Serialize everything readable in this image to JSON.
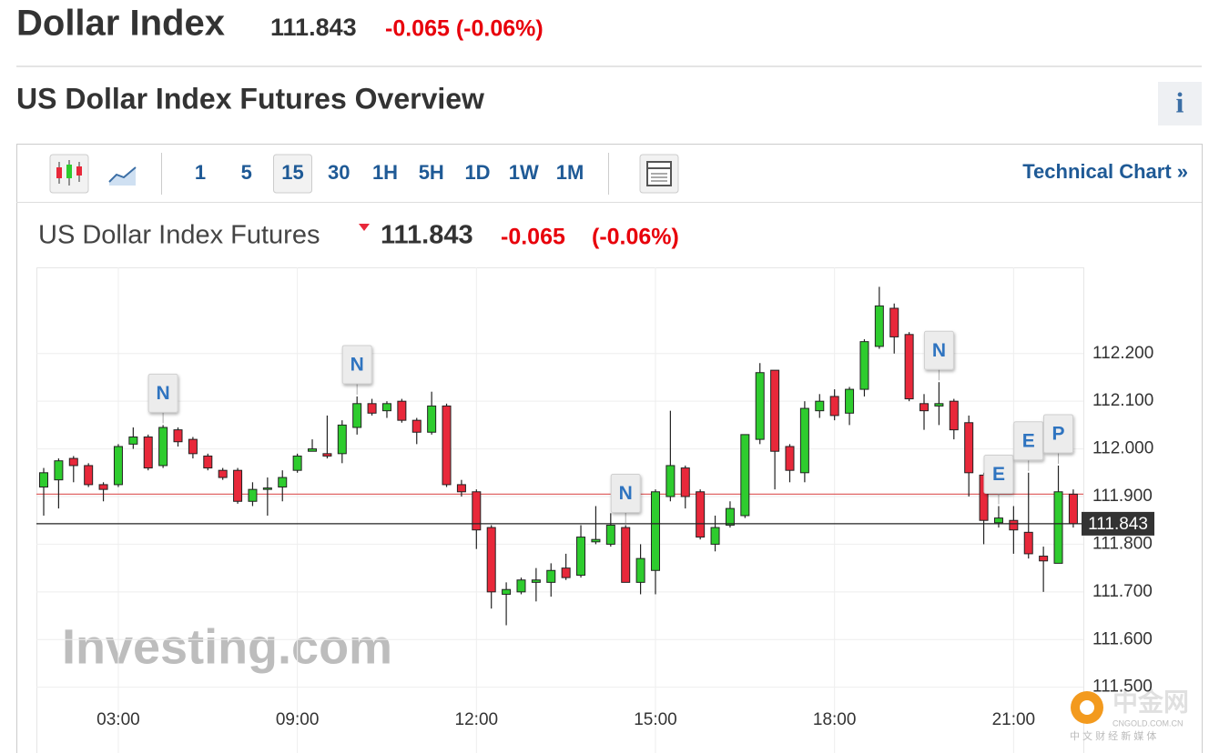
{
  "header": {
    "title": "Dollar Index",
    "price": "111.843",
    "change": "-0.065 (-0.06%)"
  },
  "section": {
    "title": "US Dollar Index Futures Overview",
    "info": "i"
  },
  "toolbar": {
    "intervals": [
      "1",
      "5",
      "15",
      "30",
      "1H",
      "5H",
      "1D",
      "1W",
      "1M"
    ],
    "active": "15",
    "link": "Technical Chart »"
  },
  "chart_data": {
    "type": "candlestick",
    "title": "US Dollar Index Futures",
    "price": "111.843",
    "change": "-0.065",
    "change_pct": "(-0.06%)",
    "categories": [
      null,
      null,
      null,
      null,
      null,
      "03:00",
      null,
      null,
      null,
      null,
      null,
      null,
      null,
      null,
      null,
      null,
      null,
      "09:00",
      null,
      null,
      null,
      null,
      null,
      null,
      null,
      null,
      null,
      null,
      null,
      "12:00",
      null,
      null,
      null,
      null,
      null,
      null,
      null,
      null,
      null,
      null,
      null,
      "15:00",
      null,
      null,
      null,
      null,
      null,
      null,
      null,
      null,
      null,
      null,
      null,
      "18:00",
      null,
      null,
      null,
      null,
      null,
      null,
      null,
      null,
      null,
      null,
      null,
      "21:00",
      null,
      null,
      null,
      null
    ],
    "candles": {
      "open": [
        111.92,
        111.935,
        111.98,
        111.965,
        111.925,
        111.925,
        112.01,
        112.025,
        111.965,
        112.04,
        112.02,
        111.985,
        111.955,
        111.955,
        111.89,
        111.915,
        111.92,
        111.955,
        111.995,
        111.99,
        111.99,
        112.045,
        112.095,
        112.08,
        112.1,
        112.06,
        112.035,
        112.09,
        111.925,
        111.91,
        111.835,
        111.695,
        111.7,
        111.72,
        111.72,
        111.75,
        111.735,
        111.805,
        111.8,
        111.835,
        111.72,
        111.745,
        111.9,
        111.96,
        111.91,
        111.8,
        111.84,
        111.86,
        112.02,
        112.165,
        112.005,
        111.95,
        112.08,
        112.11,
        112.075,
        112.125,
        112.215,
        112.295,
        112.24,
        112.095,
        112.09,
        112.1,
        112.055,
        111.945,
        111.845,
        111.85,
        111.825,
        111.775,
        111.76,
        111.905
      ],
      "high": [
        111.96,
        111.98,
        111.985,
        111.97,
        111.93,
        112.01,
        112.045,
        112.03,
        112.05,
        112.045,
        112.025,
        111.99,
        111.96,
        111.96,
        111.93,
        111.94,
        111.955,
        111.99,
        112.02,
        112.07,
        112.06,
        112.11,
        112.105,
        112.1,
        112.105,
        112.065,
        112.12,
        112.095,
        111.935,
        111.915,
        111.84,
        111.72,
        111.73,
        111.75,
        111.76,
        111.78,
        111.84,
        111.88,
        111.865,
        111.84,
        111.8,
        111.915,
        112.08,
        111.965,
        111.915,
        111.86,
        111.89,
        112.03,
        112.18,
        112.165,
        112.01,
        112.1,
        112.115,
        112.125,
        112.13,
        112.23,
        112.34,
        112.305,
        112.245,
        112.115,
        112.14,
        112.105,
        112.07,
        111.95,
        111.88,
        111.88,
        111.95,
        111.795,
        111.965,
        111.915
      ],
      "low": [
        111.86,
        111.875,
        111.93,
        111.92,
        111.89,
        111.92,
        112.0,
        111.955,
        111.96,
        112.005,
        111.98,
        111.955,
        111.935,
        111.885,
        111.88,
        111.86,
        111.89,
        111.95,
        111.995,
        111.98,
        111.97,
        112.03,
        112.07,
        112.065,
        112.055,
        112.01,
        112.03,
        111.92,
        111.9,
        111.79,
        111.665,
        111.63,
        111.695,
        111.68,
        111.69,
        111.725,
        111.73,
        111.8,
        111.795,
        111.72,
        111.695,
        111.695,
        111.89,
        111.875,
        111.81,
        111.785,
        111.835,
        111.855,
        112.01,
        111.915,
        111.93,
        111.93,
        112.065,
        112.06,
        112.05,
        112.11,
        112.21,
        112.2,
        112.1,
        112.04,
        112.05,
        112.02,
        111.9,
        111.8,
        111.835,
        111.78,
        111.77,
        111.7,
        111.76,
        111.835
      ],
      "close": [
        111.95,
        111.975,
        111.965,
        111.925,
        111.915,
        112.005,
        112.025,
        111.96,
        112.045,
        112.015,
        111.99,
        111.96,
        111.94,
        111.89,
        111.915,
        111.918,
        111.94,
        111.985,
        112.0,
        111.985,
        112.05,
        112.095,
        112.075,
        112.095,
        112.06,
        112.035,
        112.09,
        111.925,
        111.91,
        111.83,
        111.7,
        111.705,
        111.725,
        111.725,
        111.745,
        111.73,
        111.815,
        111.81,
        111.84,
        111.72,
        111.77,
        111.91,
        111.965,
        111.9,
        111.815,
        111.835,
        111.875,
        112.03,
        112.16,
        111.995,
        111.955,
        112.085,
        112.1,
        112.07,
        112.125,
        112.225,
        112.3,
        112.235,
        112.105,
        112.08,
        112.095,
        112.04,
        111.95,
        111.85,
        111.855,
        111.83,
        111.78,
        111.765,
        111.91,
        111.843
      ]
    },
    "up_color": "#2ecc2e",
    "down_color": "#e8283a",
    "ylim": [
      111.362,
      112.377
    ],
    "yticks": [
      {
        "value": 112.2,
        "label": "112.200"
      },
      {
        "value": 112.1,
        "label": "112.100"
      },
      {
        "value": 112.0,
        "label": "112.000"
      },
      {
        "value": 111.9,
        "label": "111.900"
      },
      {
        "value": 111.8,
        "label": "111.800"
      },
      {
        "value": 111.7,
        "label": "111.700"
      },
      {
        "value": 111.6,
        "label": "111.600"
      },
      {
        "value": 111.5,
        "label": "111.500"
      }
    ],
    "grid": true,
    "reference_line": {
      "value": 111.905,
      "color": "#e06666"
    },
    "last_label": {
      "value": 111.843,
      "label": "111.843"
    },
    "events": [
      {
        "index": 8,
        "label": "N"
      },
      {
        "index": 21,
        "label": "N"
      },
      {
        "index": 39,
        "label": "N"
      },
      {
        "index": 60,
        "label": "N"
      },
      {
        "index": 64,
        "label": "E"
      },
      {
        "index": 66,
        "label": "E"
      },
      {
        "index": 68,
        "label": "P"
      }
    ],
    "watermark": "Investing.com"
  },
  "logo": {
    "name": "中金网",
    "site": "CNGOLD.COM.CN",
    "tagline": "中 文 财 经 新 媒 体"
  }
}
